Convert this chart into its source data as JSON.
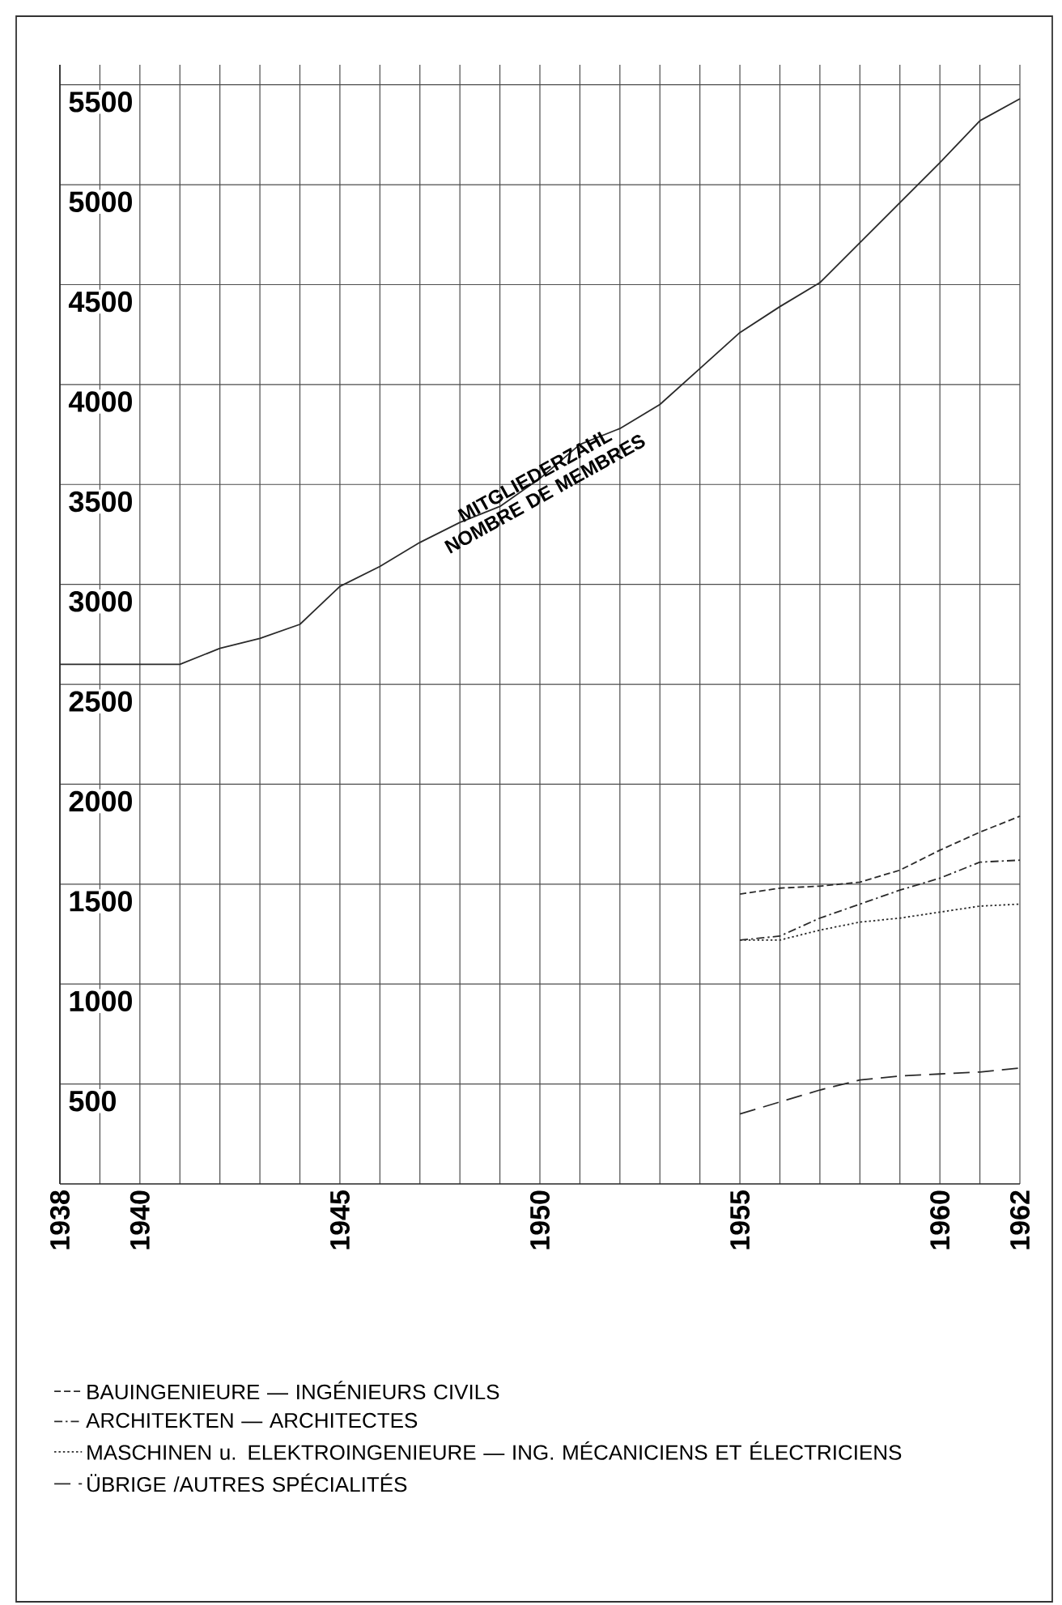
{
  "chart_data": {
    "type": "line",
    "x": [
      1938,
      1939,
      1940,
      1941,
      1942,
      1943,
      1944,
      1945,
      1946,
      1947,
      1948,
      1949,
      1950,
      1951,
      1952,
      1953,
      1954,
      1955,
      1956,
      1957,
      1958,
      1959,
      1960,
      1961,
      1962
    ],
    "series": [
      {
        "color": "#2a2a2a",
        "line_style": "solid",
        "values": [
          2600,
          2600,
          2600,
          2600,
          2680,
          2730,
          2800,
          2990,
          3090,
          3210,
          3310,
          3390,
          3530,
          3700,
          3780,
          3900,
          4080,
          4260,
          4390,
          4510,
          4710,
          4910,
          5110,
          5320,
          5430
        ]
      },
      {
        "name": "BAUINGENIEURE — INGÉNIEURS CIVILS",
        "color": "#2a2a2a",
        "line_style": "dashed",
        "x": [
          1955,
          1956,
          1957,
          1958,
          1959,
          1960,
          1961,
          1962
        ],
        "values": [
          1450,
          1480,
          1490,
          1510,
          1570,
          1670,
          1760,
          1840
        ]
      },
      {
        "name": "ARCHITEKTEN — ARCHITECTES",
        "color": "#2a2a2a",
        "line_style": "dashdot",
        "x": [
          1955,
          1956,
          1957,
          1958,
          1959,
          1960,
          1961,
          1962
        ],
        "values": [
          1220,
          1240,
          1330,
          1400,
          1470,
          1530,
          1610,
          1620
        ]
      },
      {
        "name": "MASCHINEN u. ELEKTROINGENIEURE — ING. MÉCANICIENS ET ÉLECTRICIENS",
        "color": "#2a2a2a",
        "line_style": "dotted",
        "x": [
          1955,
          1956,
          1957,
          1958,
          1959,
          1960,
          1961,
          1962
        ],
        "values": [
          1220,
          1220,
          1270,
          1310,
          1330,
          1360,
          1390,
          1400
        ]
      },
      {
        "name": "ÜBRIGE /AUTRES SPÉCIALITÉS",
        "color": "#2a2a2a",
        "line_style": "longdash",
        "x": [
          1955,
          1956,
          1957,
          1958,
          1959,
          1960,
          1961,
          1962
        ],
        "values": [
          350,
          410,
          470,
          520,
          540,
          550,
          560,
          580
        ]
      }
    ],
    "annotations": [
      {
        "text": "MITGLIEDERZAHL NOMBRE DE MEMBRES",
        "x": 1950,
        "y": 3500
      }
    ],
    "xlim": [
      1938,
      1962
    ],
    "xticks": [
      1938,
      {
        "value": 1939,
        "label": null
      },
      1940,
      {
        "value": 1941,
        "label": null
      },
      {
        "value": 1942,
        "label": null
      },
      {
        "value": 1943,
        "label": null
      },
      {
        "value": 1944,
        "label": null
      },
      1945,
      {
        "value": 1946,
        "label": null
      },
      {
        "value": 1947,
        "label": null
      },
      {
        "value": 1948,
        "label": null
      },
      {
        "value": 1949,
        "label": null
      },
      1950,
      {
        "value": 1951,
        "label": null
      },
      {
        "value": 1952,
        "label": null
      },
      {
        "value": 1953,
        "label": null
      },
      {
        "value": 1954,
        "label": null
      },
      1955,
      {
        "value": 1956,
        "label": null
      },
      {
        "value": 1957,
        "label": null
      },
      {
        "value": 1958,
        "label": null
      },
      {
        "value": 1959,
        "label": null
      },
      1960,
      {
        "value": 1961,
        "label": null
      },
      1962
    ],
    "ylim": [
      0,
      5600
    ],
    "yticks": [
      500,
      1000,
      1500,
      2000,
      2500,
      3000,
      3500,
      4000,
      4500,
      5000,
      5500
    ],
    "grid": true,
    "legend": "bottom"
  }
}
